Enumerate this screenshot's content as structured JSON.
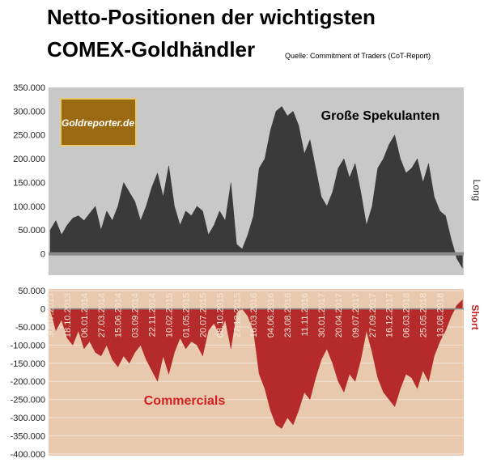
{
  "chart_data": [
    {
      "type": "area",
      "title": [
        "Netto-Positionen der wichtigsten",
        "COMEX-Goldhändler"
      ],
      "source": "Quelle: Commitment of Traders (CoT-Report)",
      "logo": "Goldreporter.de",
      "annotation": "Große Spekulanten",
      "y_label": "Long",
      "color": "#3a3a3a",
      "background": "#c8c8c8",
      "grid": false,
      "ylim": [
        -45000,
        350000
      ],
      "yticks": [
        {
          "value": 350000,
          "label": "350.000"
        },
        {
          "value": 300000,
          "label": "300.000"
        },
        {
          "value": 250000,
          "label": "250.000"
        },
        {
          "value": 200000,
          "label": "200.000"
        },
        {
          "value": 150000,
          "label": "150.000"
        },
        {
          "value": 100000,
          "label": "100.000"
        },
        {
          "value": 50000,
          "label": "50.000"
        },
        0
      ],
      "values": [
        50000,
        70000,
        40000,
        60000,
        75000,
        80000,
        70000,
        85000,
        100000,
        50000,
        90000,
        70000,
        100000,
        150000,
        130000,
        110000,
        70000,
        100000,
        140000,
        170000,
        120000,
        185000,
        100000,
        60000,
        90000,
        80000,
        100000,
        90000,
        40000,
        60000,
        90000,
        70000,
        150000,
        20000,
        10000,
        40000,
        80000,
        180000,
        200000,
        260000,
        300000,
        310000,
        290000,
        300000,
        270000,
        210000,
        240000,
        180000,
        120000,
        100000,
        130000,
        180000,
        200000,
        160000,
        190000,
        130000,
        60000,
        100000,
        180000,
        200000,
        230000,
        250000,
        200000,
        170000,
        180000,
        200000,
        150000,
        190000,
        120000,
        90000,
        80000,
        30000,
        -10000,
        -30000
      ]
    },
    {
      "type": "area",
      "annotation": "Commercials",
      "y_label": "Short",
      "color": "#b52a2a",
      "background": "#e9c9ae",
      "grid": true,
      "ylim": [
        -405000,
        55000
      ],
      "yticks": [
        {
          "value": 50000,
          "label": "50.000"
        },
        0,
        {
          "value": -50000,
          "label": "-50.000"
        },
        {
          "value": -100000,
          "label": "-100.000"
        },
        {
          "value": -150000,
          "label": "-150.000"
        },
        {
          "value": -200000,
          "label": "-200.000"
        },
        {
          "value": -250000,
          "label": "-250.000"
        },
        {
          "value": -300000,
          "label": "-300.000"
        },
        {
          "value": -350000,
          "label": "-350.000"
        },
        {
          "value": -400000,
          "label": "-400.000"
        }
      ],
      "categories": [
        "30.07.2013",
        null,
        null,
        "18.10.2013",
        null,
        null,
        "06.01.2014",
        null,
        null,
        "27.03.2014",
        null,
        null,
        "15.06.2014",
        null,
        null,
        "03.09.2014",
        null,
        null,
        "22.11.2014",
        null,
        null,
        "10.02.2015",
        null,
        null,
        "01.05.2015",
        null,
        null,
        "20.07.2015",
        null,
        null,
        "08.10.2015",
        null,
        null,
        "27.12.2015",
        null,
        null,
        "16.03.2016",
        null,
        null,
        "04.06.2016",
        null,
        null,
        "23.08.2016",
        null,
        null,
        "11.11.2016",
        null,
        null,
        "30.01.2017",
        null,
        null,
        "20.04.2017",
        null,
        null,
        "09.07.2017",
        null,
        null,
        "27.09.2017",
        null,
        null,
        "16.12.2017",
        null,
        null,
        "06.03.2018",
        null,
        null,
        "25.05.2018",
        null,
        null,
        "13.08.2018",
        null,
        null,
        null,
        null
      ],
      "values": [
        0,
        -60000,
        -30000,
        -80000,
        -100000,
        -60000,
        -110000,
        -90000,
        -120000,
        -130000,
        -100000,
        -140000,
        -160000,
        -130000,
        -150000,
        -120000,
        -100000,
        -140000,
        -170000,
        -200000,
        -130000,
        -180000,
        -120000,
        -80000,
        -110000,
        -90000,
        -100000,
        -130000,
        -60000,
        -40000,
        -70000,
        -30000,
        -110000,
        -10000,
        0,
        -20000,
        -60000,
        -180000,
        -220000,
        -280000,
        -320000,
        -330000,
        -300000,
        -320000,
        -280000,
        -230000,
        -250000,
        -190000,
        -140000,
        -110000,
        -150000,
        -200000,
        -230000,
        -180000,
        -200000,
        -140000,
        -60000,
        -120000,
        -190000,
        -230000,
        -250000,
        -270000,
        -220000,
        -180000,
        -190000,
        -220000,
        -170000,
        -200000,
        -130000,
        -90000,
        -60000,
        -20000,
        10000,
        25000
      ]
    }
  ]
}
